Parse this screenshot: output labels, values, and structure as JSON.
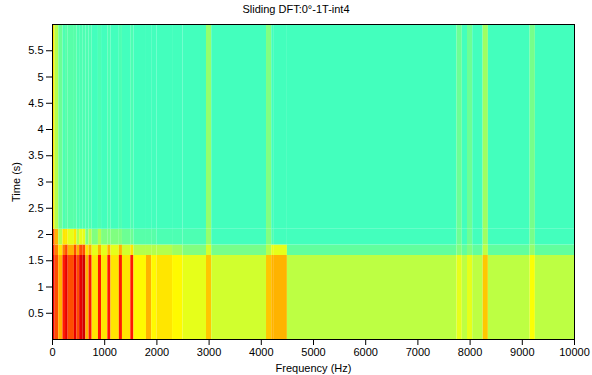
{
  "chart_data": {
    "type": "heatmap",
    "title": "Sliding DFT:0°-1T-int4",
    "x_label": "Frequency (Hz)",
    "y_label": "Time (s)",
    "xlim": [
      0,
      10000
    ],
    "xticks": [
      0,
      1000,
      2000,
      3000,
      4000,
      5000,
      6000,
      7000,
      8000,
      9000,
      10000
    ],
    "ylim": [
      0,
      6
    ],
    "yticks": [
      0.5,
      1,
      1.5,
      2,
      2.5,
      3,
      3.5,
      4,
      4.5,
      5,
      5.5
    ],
    "zlim": [
      0,
      10
    ],
    "cells": {
      "x_edges": [
        0,
        50,
        120,
        200,
        250,
        300,
        420,
        470,
        520,
        580,
        640,
        700,
        760,
        880,
        940,
        1060,
        1120,
        1280,
        1340,
        1500,
        1560,
        1800,
        1900,
        2000,
        2300,
        2500,
        2950,
        3050,
        4100,
        4200,
        4250,
        4500,
        7750,
        7850,
        7950,
        8050,
        8250,
        8350,
        9150,
        9250,
        10000
      ],
      "y_edges": [
        0,
        1.6,
        1.8,
        2.1,
        6
      ],
      "values": [
        [
          9,
          8,
          7,
          8.5,
          9,
          8,
          9,
          8,
          9,
          9.2,
          7,
          8.5,
          6.5,
          8.5,
          6.5,
          8.5,
          6.5,
          8.5,
          6.5,
          8.5,
          6.3,
          7,
          6.3,
          6.5,
          6.3,
          6,
          6.8,
          5.8,
          6.8,
          7,
          7,
          5.6,
          6,
          5.6,
          6,
          5.6,
          6.8,
          5.6,
          6.2,
          5.6
        ],
        [
          8.5,
          7.5,
          6.5,
          7.5,
          8,
          7,
          8,
          7,
          8,
          8,
          6.5,
          7,
          6,
          7,
          6,
          7,
          6,
          7,
          5.8,
          6.5,
          5.5,
          5.5,
          5.5,
          5.5,
          5.3,
          5,
          5.8,
          4.9,
          5.5,
          6,
          6,
          4.7,
          5,
          4.7,
          5,
          4.7,
          5.6,
          4.7,
          5.2,
          4.7
        ],
        [
          8,
          7,
          5.5,
          6.5,
          6.5,
          6,
          6.5,
          5.5,
          6,
          6,
          5,
          5.5,
          5,
          5.5,
          5,
          5,
          5,
          5,
          4.8,
          4.8,
          4.6,
          4.6,
          4.6,
          4.5,
          4.5,
          4.5,
          5.2,
          4.4,
          5,
          4.5,
          4.4,
          4.4,
          4.8,
          4.4,
          4.8,
          4.4,
          5.3,
          4.4,
          4.9,
          4.4
        ],
        [
          6.5,
          5.5,
          4.8,
          4.5,
          4.6,
          4.6,
          4.6,
          4.5,
          4.5,
          4.5,
          4.5,
          4.5,
          4.4,
          4.5,
          4.4,
          4.5,
          4.4,
          4.5,
          4.4,
          4.5,
          4.4,
          4.4,
          4.4,
          4.4,
          4.4,
          4.4,
          5.2,
          4.4,
          5,
          4.4,
          4.4,
          4.4,
          4.8,
          4.4,
          4.8,
          4.4,
          5.3,
          4.4,
          4.9,
          4.4
        ]
      ]
    }
  }
}
